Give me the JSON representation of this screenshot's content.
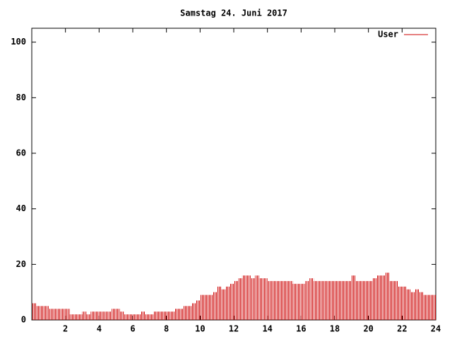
{
  "chart_data": {
    "type": "impulse",
    "title": "Samstag 24. Juni 2017",
    "x": [
      0,
      0.25,
      0.5,
      0.75,
      1,
      1.25,
      1.5,
      1.75,
      2,
      2.25,
      2.5,
      2.75,
      3,
      3.25,
      3.5,
      3.75,
      4,
      4.25,
      4.5,
      4.75,
      5,
      5.25,
      5.5,
      5.75,
      6,
      6.25,
      6.5,
      6.75,
      7,
      7.25,
      7.5,
      7.75,
      8,
      8.25,
      8.5,
      8.75,
      9,
      9.25,
      9.5,
      9.75,
      10,
      10.25,
      10.5,
      10.75,
      11,
      11.25,
      11.5,
      11.75,
      12,
      12.25,
      12.5,
      12.75,
      13,
      13.25,
      13.5,
      13.75,
      14,
      14.25,
      14.5,
      14.75,
      15,
      15.25,
      15.5,
      15.75,
      16,
      16.25,
      16.5,
      16.75,
      17,
      17.25,
      17.5,
      17.75,
      18,
      18.25,
      18.5,
      18.75,
      19,
      19.25,
      19.5,
      19.75,
      20,
      20.25,
      20.5,
      20.75,
      21,
      21.25,
      21.5,
      21.75,
      22,
      22.25,
      22.5,
      22.75,
      23,
      23.25,
      23.5,
      23.75
    ],
    "series": [
      {
        "name": "User",
        "color": "#cc0000",
        "values": [
          6,
          5,
          5,
          5,
          4,
          4,
          4,
          4,
          4,
          2,
          2,
          2,
          3,
          2,
          3,
          3,
          3,
          3,
          3,
          4,
          4,
          3,
          2,
          2,
          2,
          2,
          3,
          2,
          2,
          3,
          3,
          3,
          3,
          3,
          4,
          4,
          5,
          5,
          6,
          7,
          9,
          9,
          9,
          10,
          12,
          11,
          12,
          13,
          14,
          15,
          16,
          16,
          15,
          16,
          15,
          15,
          14,
          14,
          14,
          14,
          14,
          14,
          13,
          13,
          13,
          14,
          15,
          14,
          14,
          14,
          14,
          14,
          14,
          14,
          14,
          14,
          16,
          14,
          14,
          14,
          14,
          15,
          16,
          16,
          17,
          14,
          14,
          12,
          12,
          11,
          10,
          11,
          10,
          9,
          9,
          9
        ]
      }
    ],
    "xlim": [
      0,
      24
    ],
    "xticks": [
      2,
      4,
      6,
      8,
      10,
      12,
      14,
      16,
      18,
      20,
      22,
      24
    ],
    "ylim": [
      0,
      105
    ],
    "yticks": [
      0,
      20,
      40,
      60,
      80,
      100
    ],
    "legend": "top-right"
  }
}
